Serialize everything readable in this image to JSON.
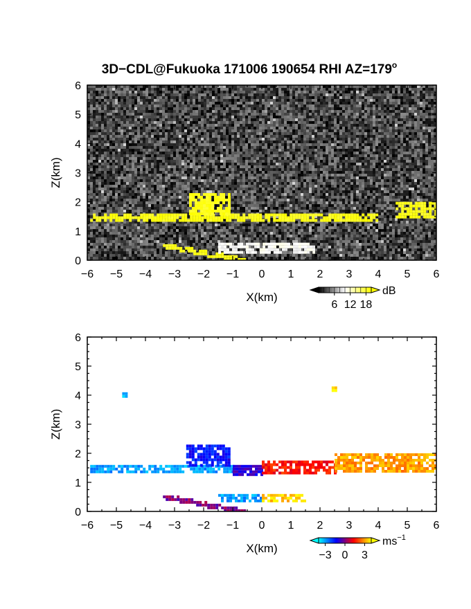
{
  "figure": {
    "title": "3D−CDL@Fukuoka 171006 190654 RHI AZ=179",
    "title_superscript": "o"
  },
  "chart_data": [
    {
      "type": "heatmap",
      "variable": "reflectivity",
      "xlabel": "X(km)",
      "ylabel": "Z(km)",
      "xlim": [
        -6,
        6
      ],
      "ylim": [
        0,
        6
      ],
      "xticks": [
        "−6",
        "−5",
        "−4",
        "−3",
        "−2",
        "−1",
        "0",
        "1",
        "2",
        "3",
        "4",
        "5",
        "6"
      ],
      "yticks": [
        "0",
        "1",
        "2",
        "3",
        "4",
        "5",
        "6"
      ],
      "background": "noise, dark grey speckle",
      "colorbar": {
        "unit": "dB",
        "ticks": [
          6,
          12,
          18
        ],
        "labels": [
          "6",
          "12",
          "18"
        ],
        "range": [
          0,
          20
        ],
        "colors": [
          "#000000",
          "#ffffff",
          "#ffff00"
        ]
      },
      "features": [
        {
          "name": "main layer",
          "x": [
            -5.9,
            4.0
          ],
          "z": [
            1.35,
            1.6
          ],
          "level": "high"
        },
        {
          "name": "echoes near X=-2",
          "x": [
            -2.5,
            -1.1
          ],
          "z": [
            1.6,
            2.3
          ],
          "level": "high"
        },
        {
          "name": "right layer",
          "x": [
            4.6,
            6.0
          ],
          "z": [
            1.5,
            2.0
          ],
          "level": "high"
        },
        {
          "name": "low trail",
          "x": [
            -3.4,
            -0.6
          ],
          "z": [
            0.02,
            0.55
          ],
          "level": "high"
        },
        {
          "name": "faint band",
          "x": [
            -1.5,
            1.8
          ],
          "z": [
            0.3,
            0.6
          ],
          "level": "medium"
        }
      ]
    },
    {
      "type": "heatmap",
      "variable": "radial velocity",
      "xlabel": "X(km)",
      "ylabel": "Z(km)",
      "xlim": [
        -6,
        6
      ],
      "ylim": [
        0,
        6
      ],
      "xticks": [
        "−6",
        "−5",
        "−4",
        "−3",
        "−2",
        "−1",
        "0",
        "1",
        "2",
        "3",
        "4",
        "5",
        "6"
      ],
      "yticks": [
        "0",
        "1",
        "2",
        "3",
        "4",
        "5",
        "6"
      ],
      "colorbar": {
        "unit": "ms",
        "unit_superscript": "−1",
        "ticks": [
          -3,
          0,
          3
        ],
        "labels": [
          "−3",
          "0",
          "3"
        ],
        "range": [
          -4,
          4
        ],
        "colors": [
          "#00ffff",
          "#0000ff",
          "#ff0000",
          "#ffff00"
        ]
      },
      "features": [
        {
          "name": "main layer west",
          "x": [
            -5.9,
            -1.0
          ],
          "z": [
            1.35,
            1.6
          ],
          "velocity": -3
        },
        {
          "name": "main layer centre",
          "x": [
            -1.0,
            0.0
          ],
          "z": [
            1.3,
            1.6
          ],
          "velocity": -1
        },
        {
          "name": "main layer east",
          "x": [
            0.0,
            2.5
          ],
          "z": [
            1.3,
            1.75
          ],
          "velocity": 1.5
        },
        {
          "name": "main layer far east",
          "x": [
            2.5,
            6.0
          ],
          "z": [
            1.4,
            2.0
          ],
          "velocity": 3
        },
        {
          "name": "echoes near X=-2",
          "x": [
            -2.6,
            -1.1
          ],
          "z": [
            1.6,
            2.3
          ],
          "velocity": -1.5
        },
        {
          "name": "low trail",
          "x": [
            -3.4,
            -0.6
          ],
          "z": [
            0.02,
            0.55
          ],
          "velocity": 0
        },
        {
          "name": "near-surface west",
          "x": [
            -1.5,
            0.0
          ],
          "z": [
            0.4,
            0.6
          ],
          "velocity": -3
        },
        {
          "name": "near-surface east",
          "x": [
            0.0,
            1.5
          ],
          "z": [
            0.35,
            0.6
          ],
          "velocity": 3.5
        },
        {
          "name": "isolated echo",
          "x": [
            -4.8,
            -4.7
          ],
          "z": [
            4.0,
            4.1
          ],
          "velocity": -3.5
        },
        {
          "name": "isolated echo east",
          "x": [
            2.4,
            2.5
          ],
          "z": [
            4.2,
            4.3
          ],
          "velocity": 3.5
        }
      ]
    }
  ]
}
